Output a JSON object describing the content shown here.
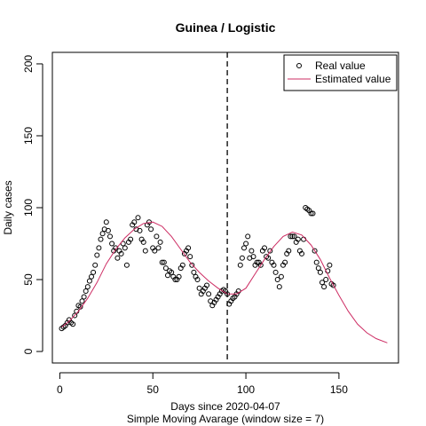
{
  "chart_data": {
    "type": "scatter",
    "title": "Guinea / Logistic",
    "xlabel": "Days since 2020-04-07",
    "xlabel2": "Simple Moving Avarage (window size = 7)",
    "ylabel": "Daily cases",
    "xlim": [
      -4,
      182
    ],
    "ylim": [
      -8,
      208
    ],
    "xticks": [
      0,
      50,
      100,
      150
    ],
    "yticks": [
      0,
      50,
      100,
      150,
      200
    ],
    "vline_x": 90,
    "grid": false,
    "legend_position": "top-right",
    "legend": [
      {
        "label": "Real value",
        "marker": "circle"
      },
      {
        "label": "Estimated value",
        "marker": "line"
      }
    ],
    "colors": {
      "real": "#000000",
      "estimated": "#CD2C63"
    },
    "series": [
      {
        "name": "Real value",
        "kind": "points",
        "x": [
          1,
          2,
          3,
          4,
          5,
          6,
          7,
          8,
          9,
          10,
          11,
          12,
          13,
          14,
          15,
          16,
          17,
          18,
          19,
          20,
          21,
          22,
          23,
          24,
          25,
          26,
          27,
          28,
          29,
          30,
          31,
          32,
          33,
          34,
          35,
          36,
          37,
          38,
          39,
          40,
          41,
          42,
          43,
          44,
          45,
          46,
          47,
          48,
          49,
          50,
          51,
          52,
          53,
          54,
          55,
          56,
          57,
          58,
          59,
          60,
          61,
          62,
          63,
          64,
          65,
          66,
          67,
          68,
          69,
          70,
          71,
          72,
          73,
          74,
          75,
          76,
          77,
          78,
          79,
          80,
          81,
          82,
          83,
          84,
          85,
          86,
          87,
          88,
          89,
          90,
          91,
          92,
          93,
          94,
          95,
          96,
          97,
          98,
          99,
          100,
          101,
          102,
          103,
          104,
          105,
          106,
          107,
          108,
          109,
          110,
          111,
          112,
          113,
          114,
          115,
          116,
          117,
          118,
          119,
          120,
          121,
          122,
          123,
          124,
          125,
          126,
          127,
          128,
          129,
          130,
          131,
          132,
          133,
          134,
          135,
          136,
          137,
          138,
          139,
          140,
          141,
          142,
          143,
          144,
          145,
          146,
          147
        ],
        "y": [
          16,
          17,
          18,
          20,
          22,
          20,
          19,
          25,
          28,
          32,
          31,
          35,
          38,
          42,
          45,
          49,
          52,
          55,
          60,
          67,
          72,
          78,
          82,
          85,
          90,
          84,
          80,
          75,
          70,
          72,
          65,
          70,
          68,
          75,
          72,
          60,
          76,
          78,
          88,
          90,
          85,
          93,
          84,
          78,
          76,
          70,
          88,
          90,
          85,
          72,
          70,
          80,
          72,
          76,
          62,
          62,
          58,
          53,
          56,
          55,
          52,
          50,
          50,
          52,
          58,
          60,
          68,
          70,
          72,
          66,
          60,
          55,
          52,
          50,
          44,
          40,
          42,
          44,
          46,
          40,
          35,
          32,
          34,
          36,
          38,
          40,
          42,
          43,
          42,
          40,
          33,
          35,
          37,
          38,
          40,
          42,
          60,
          65,
          72,
          75,
          80,
          65,
          70,
          66,
          60,
          62,
          62,
          60,
          70,
          72,
          66,
          65,
          70,
          62,
          60,
          55,
          50,
          45,
          52,
          60,
          62,
          68,
          70,
          80,
          80,
          80,
          76,
          78,
          70,
          68,
          78,
          100,
          99,
          98,
          96,
          96,
          70,
          62,
          58,
          55,
          48,
          45,
          50,
          56,
          60,
          47,
          46
        ]
      },
      {
        "name": "Estimated value",
        "kind": "line",
        "x": [
          1,
          5,
          10,
          15,
          20,
          25,
          30,
          35,
          40,
          45,
          50,
          55,
          60,
          65,
          70,
          75,
          80,
          85,
          90,
          95,
          100,
          105,
          110,
          115,
          120,
          125,
          130,
          135,
          140,
          145,
          150,
          155,
          160,
          165,
          170,
          176
        ],
        "y": [
          17,
          21,
          28,
          37,
          48,
          61,
          71,
          79,
          85,
          89,
          90,
          87,
          80,
          71,
          62,
          55,
          49,
          44,
          40,
          40,
          44,
          54,
          64,
          73,
          80,
          83,
          81,
          74,
          64,
          51,
          39,
          28,
          19,
          13,
          9,
          6
        ]
      }
    ]
  }
}
